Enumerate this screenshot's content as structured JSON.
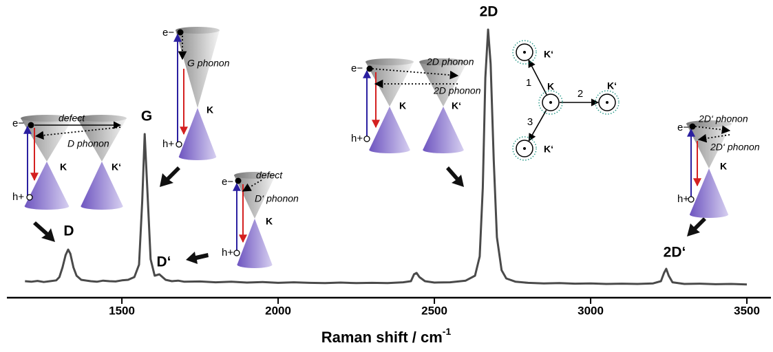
{
  "chart_data": {
    "type": "line",
    "x_label": "Raman shift / cm",
    "x_label_sup": "-1",
    "x": [
      1190,
      1210,
      1230,
      1250,
      1270,
      1290,
      1300,
      1310,
      1320,
      1328,
      1335,
      1345,
      1355,
      1370,
      1400,
      1420,
      1440,
      1460,
      1480,
      1500,
      1520,
      1540,
      1555,
      1565,
      1573,
      1582,
      1592,
      1605,
      1620,
      1640,
      1660,
      1680,
      1700,
      1750,
      1800,
      1850,
      1900,
      1950,
      2000,
      2050,
      2100,
      2150,
      2200,
      2250,
      2300,
      2350,
      2400,
      2425,
      2435,
      2443,
      2452,
      2470,
      2500,
      2550,
      2600,
      2630,
      2645,
      2655,
      2663,
      2672,
      2680,
      2690,
      2700,
      2715,
      2730,
      2760,
      2800,
      2850,
      2900,
      2950,
      3000,
      3050,
      3100,
      3150,
      3200,
      3225,
      3235,
      3242,
      3250,
      3262,
      3300,
      3350,
      3400,
      3450,
      3500
    ],
    "values": [
      6,
      5.8,
      6.1,
      5.7,
      6,
      6.3,
      7.5,
      11,
      15.5,
      17.5,
      16,
      11,
      8,
      6.5,
      6,
      5.8,
      6.2,
      6,
      5.9,
      6.3,
      6.5,
      7.5,
      12,
      35,
      59.5,
      38,
      14,
      8,
      8.5,
      6.5,
      6,
      6.2,
      5.8,
      5.9,
      5.6,
      5.8,
      5.5,
      5.7,
      5.4,
      5.6,
      5.4,
      5.3,
      5.5,
      5.3,
      5.4,
      5.3,
      5.6,
      6,
      8.5,
      9,
      7.5,
      6,
      5.5,
      5.6,
      6.2,
      8,
      15,
      40,
      80,
      97.5,
      85,
      50,
      22,
      10,
      7,
      5.8,
      5.4,
      5.2,
      5.3,
      5.1,
      5.2,
      5,
      5.1,
      5,
      5.2,
      6,
      9,
      10.5,
      8,
      5.6,
      5,
      5.1,
      4.9,
      5,
      4.8
    ],
    "color": "#4a4a4a",
    "xlim": [
      1132,
      3577
    ],
    "ylim": [
      0,
      100
    ],
    "xticks": [
      1500,
      2000,
      2500,
      3000,
      3500
    ],
    "peak_labels": [
      "D",
      "G",
      "D‘",
      "2D",
      "2D‘"
    ],
    "insets": [
      [
        "e−",
        "h+",
        "K",
        "K‘",
        "defect",
        "D phonon"
      ],
      [
        "e−",
        "h+",
        "K",
        "G phonon"
      ],
      [
        "e−",
        "h+",
        "K",
        "defect",
        "D‘ phonon"
      ],
      [
        "e−",
        "h+",
        "K",
        "K‘",
        "2D phonon",
        "2D phonon"
      ],
      [
        "e−",
        "h+",
        "K",
        "2D‘ phonon",
        "2D‘ phonon"
      ]
    ],
    "brillouin": [
      "K",
      "K‘",
      "K‘",
      "K‘",
      "1",
      "2",
      "3"
    ]
  }
}
